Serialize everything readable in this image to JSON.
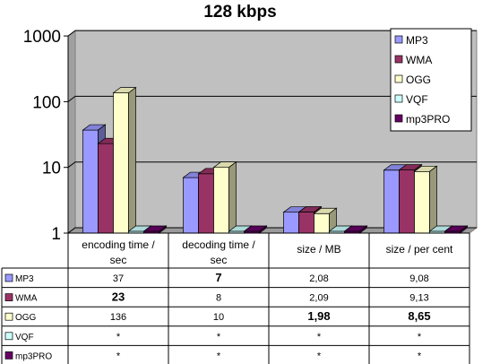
{
  "chart_data": {
    "type": "bar",
    "title": "128 kbps",
    "y_scale": "log",
    "ylim": [
      1,
      1000
    ],
    "y_ticks": [
      "1",
      "10",
      "100",
      "1000"
    ],
    "grid": true,
    "legend_position": "top-right",
    "categories": [
      "encoding time / sec",
      "decoding time / sec",
      "size / MB",
      "size / per cent"
    ],
    "category_labels": [
      [
        "encoding time /",
        "sec"
      ],
      [
        "decoding time /",
        "sec"
      ],
      [
        "size / MB"
      ],
      [
        "size / per cent"
      ]
    ],
    "series": [
      {
        "name": "MP3",
        "color": "#9999FF",
        "values": [
          37,
          7,
          2.08,
          9.08
        ],
        "cells": [
          "37",
          "7",
          "2,08",
          "9,08"
        ],
        "bold": [
          false,
          true,
          false,
          false
        ]
      },
      {
        "name": "WMA",
        "color": "#993366",
        "values": [
          23,
          8,
          2.09,
          9.13
        ],
        "cells": [
          "23",
          "8",
          "2,09",
          "9,13"
        ],
        "bold": [
          true,
          false,
          false,
          false
        ]
      },
      {
        "name": "OGG",
        "color": "#FFFFCC",
        "values": [
          136,
          10,
          1.98,
          8.65
        ],
        "cells": [
          "136",
          "10",
          "1,98",
          "8,65"
        ],
        "bold": [
          false,
          false,
          true,
          true
        ]
      },
      {
        "name": "VQF",
        "color": "#CCFFFF",
        "values": [
          null,
          null,
          null,
          null
        ],
        "cells": [
          "*",
          "*",
          "*",
          "*"
        ],
        "bold": [
          false,
          false,
          false,
          false
        ]
      },
      {
        "name": "mp3PRO",
        "color": "#660066",
        "values": [
          null,
          null,
          null,
          null
        ],
        "cells": [
          "*",
          "*",
          "*",
          "*"
        ],
        "bold": [
          false,
          false,
          false,
          false
        ]
      }
    ],
    "colors": {
      "plot_area": "#C0C0C0",
      "background": "#FFFFFF",
      "grid": "#000000"
    }
  }
}
